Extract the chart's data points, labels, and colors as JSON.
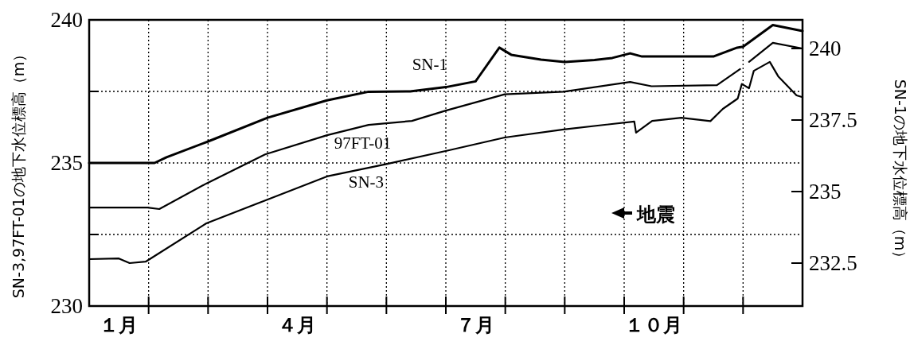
{
  "chart_data": {
    "type": "line",
    "ylabel": "SN-3,97FT-01の地下水位標高（m）",
    "y2label": "SN-1の地下水位標高（m）",
    "xlim": [
      0,
      12
    ],
    "xticks": [
      {
        "value": 0.5,
        "label": "１月"
      },
      {
        "value": 1,
        "label": null
      },
      {
        "value": 2,
        "label": null
      },
      {
        "value": 3,
        "label": null
      },
      {
        "value": 3.5,
        "label": "４月"
      },
      {
        "value": 4,
        "label": null
      },
      {
        "value": 5,
        "label": null
      },
      {
        "value": 6,
        "label": null
      },
      {
        "value": 6.5,
        "label": "７月"
      },
      {
        "value": 7,
        "label": null
      },
      {
        "value": 8,
        "label": null
      },
      {
        "value": 9,
        "label": null
      },
      {
        "value": 9.5,
        "label": "１０月"
      },
      {
        "value": 10,
        "label": null
      },
      {
        "value": 11,
        "label": null
      }
    ],
    "ylim": [
      230,
      240
    ],
    "yticks": [
      230,
      {
        "value": 232.5,
        "label": null
      },
      235,
      {
        "value": 237.5,
        "label": null
      },
      240
    ],
    "y2lim": [
      231,
      241
    ],
    "y2ticks": [
      232.5,
      235,
      237.5,
      240
    ],
    "grid": true,
    "annotations": [
      "地震"
    ],
    "series": [
      {
        "name": "SN-1",
        "color": "#000000",
        "axis": "y2",
        "x": [
          0,
          1.1,
          1.3,
          2.0,
          3.0,
          4.0,
          4.7,
          5.4,
          6.0,
          6.5,
          6.55,
          6.9,
          7.1,
          7.6,
          8.0,
          8.5,
          8.8,
          9.1,
          9.3,
          10.5,
          10.9,
          11.0,
          11.5,
          12
        ],
        "values": [
          236.0,
          236.0,
          236.2,
          236.75,
          237.58,
          238.19,
          238.49,
          238.5,
          238.65,
          238.85,
          239.0,
          240.03,
          239.78,
          239.61,
          239.53,
          239.6,
          239.67,
          239.83,
          239.72,
          239.72,
          240.03,
          240.06,
          240.82,
          240.61
        ]
      },
      {
        "name": "97FT-01",
        "color": "#000000",
        "x": [
          0,
          0.98,
          1.18,
          1.97,
          2.96,
          4.0,
          4.7,
          5.43,
          6.0,
          6.99,
          7.98,
          9.1,
          9.46,
          10.56,
          10.95,
          11.02,
          11.1,
          11.5,
          12
        ],
        "values": [
          233.44,
          233.44,
          233.39,
          234.28,
          235.3,
          235.97,
          236.33,
          236.47,
          236.83,
          237.4,
          237.49,
          237.83,
          237.68,
          237.72,
          238.28,
          null,
          238.53,
          239.2,
          239.0
        ]
      },
      {
        "name": "SN-3",
        "color": "#000000",
        "x": [
          0,
          0.5,
          0.68,
          0.95,
          1.97,
          2.96,
          4.0,
          5.02,
          6.04,
          6.99,
          7.98,
          9.17,
          9.2,
          9.47,
          9.96,
          10.45,
          10.66,
          10.91,
          10.98,
          11.1,
          11.18,
          11.45,
          11.59,
          11.9,
          12
        ],
        "values": [
          231.64,
          231.66,
          231.5,
          231.55,
          232.89,
          233.69,
          234.53,
          234.97,
          235.44,
          235.89,
          236.17,
          236.45,
          236.06,
          236.47,
          236.58,
          236.46,
          236.89,
          237.25,
          237.76,
          237.61,
          238.22,
          238.53,
          238.03,
          237.36,
          237.3
        ]
      }
    ]
  }
}
